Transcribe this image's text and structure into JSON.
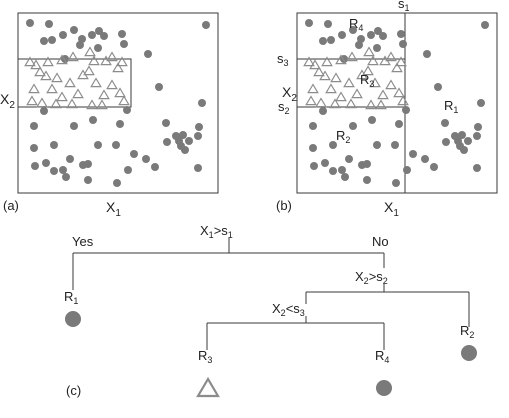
{
  "colors": {
    "dot": "#7a7a7a",
    "triangle": "#8c8c8c",
    "line": "#3a3a3a",
    "text": "#222222"
  },
  "panel_a": {
    "label": "(a)",
    "x_axis_label": "X",
    "x_axis_sub": "1",
    "y_axis_label": "X",
    "y_axis_sub": "2"
  },
  "panel_b": {
    "label": "(b)",
    "x_axis_label": "X",
    "x_axis_sub": "1",
    "y_axis_label": "X",
    "y_axis_sub": "2",
    "split_s1": {
      "label": "s",
      "sub": "1"
    },
    "split_s2": {
      "label": "s",
      "sub": "2"
    },
    "split_s3": {
      "label": "s",
      "sub": "3"
    },
    "regions": [
      {
        "label": "R",
        "sub": "4"
      },
      {
        "label": "R",
        "sub": "3"
      },
      {
        "label": "R",
        "sub": "1"
      },
      {
        "label": "R",
        "sub": "2"
      }
    ]
  },
  "tree": {
    "label": "(c)",
    "root": {
      "var": "X",
      "var_sub": "1",
      "op": ">",
      "thr": "s",
      "thr_sub": "1"
    },
    "yes_label": "Yes",
    "no_label": "No",
    "node_x2_gt": {
      "var": "X",
      "var_sub": "2",
      "op": ">",
      "thr": "s",
      "thr_sub": "2"
    },
    "node_x2_lt": {
      "var": "X",
      "var_sub": "2",
      "op": "<",
      "thr": "s",
      "thr_sub": "3"
    },
    "leaves": [
      {
        "label": "R",
        "sub": "1",
        "marker": "dot"
      },
      {
        "label": "R",
        "sub": "2",
        "marker": "dot"
      },
      {
        "label": "R",
        "sub": "3",
        "marker": "triangle"
      },
      {
        "label": "R",
        "sub": "4",
        "marker": "dot"
      }
    ]
  }
}
